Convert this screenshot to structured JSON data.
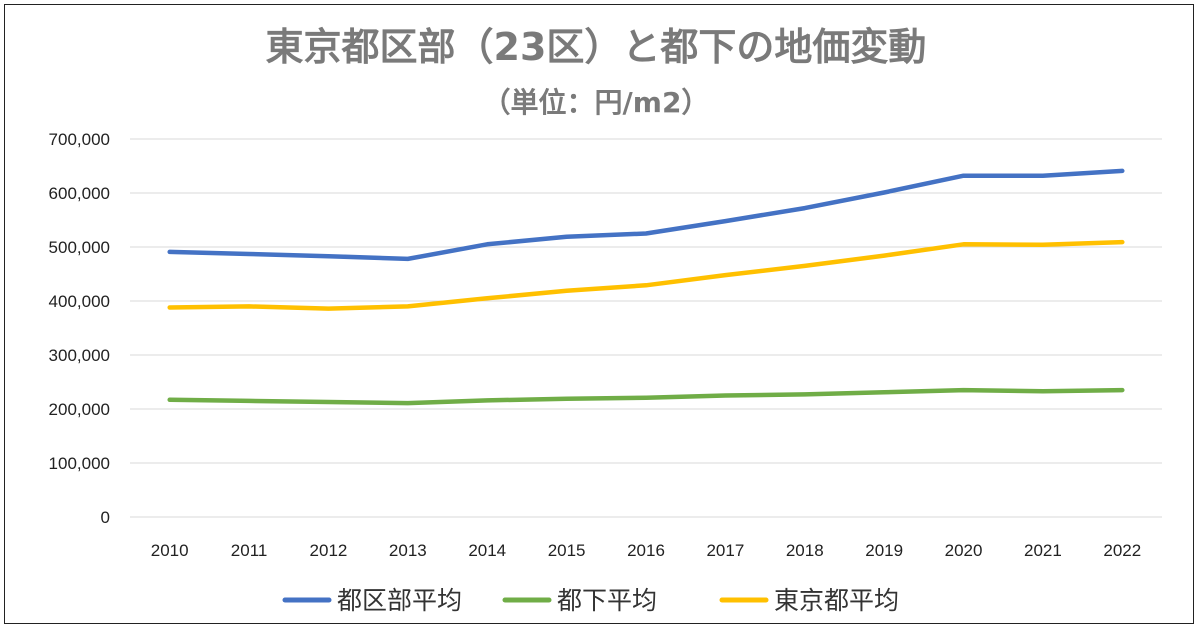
{
  "chart_data": {
    "type": "line",
    "title": "東京都区部（23区）と都下の地価変動",
    "subtitle": "（単位：円/m2）",
    "x": [
      "2010",
      "2011",
      "2012",
      "2013",
      "2014",
      "2015",
      "2016",
      "2017",
      "2018",
      "2019",
      "2020",
      "2021",
      "2022"
    ],
    "ylim": [
      0,
      700000
    ],
    "yticks": [
      {
        "value": 0,
        "label": "0"
      },
      {
        "value": 100000,
        "label": "100,000"
      },
      {
        "value": 200000,
        "label": "200,000"
      },
      {
        "value": 300000,
        "label": "300,000"
      },
      {
        "value": 400000,
        "label": "400,000"
      },
      {
        "value": 500000,
        "label": "500,000"
      },
      {
        "value": 600000,
        "label": "600,000"
      },
      {
        "value": 700000,
        "label": "700,000"
      }
    ],
    "grid": true,
    "legend_position": "bottom",
    "series": [
      {
        "name": "都区部平均",
        "color": "#4472c4",
        "values": [
          491000,
          487000,
          483000,
          478000,
          505000,
          519000,
          525000,
          548000,
          572000,
          601000,
          632000,
          632000,
          641000
        ]
      },
      {
        "name": "都下平均",
        "color": "#70ad47",
        "values": [
          217000,
          215000,
          213000,
          211000,
          216000,
          219000,
          221000,
          225000,
          227000,
          231000,
          235000,
          233000,
          235000
        ]
      },
      {
        "name": "東京都平均",
        "color": "#ffc000",
        "values": [
          388000,
          390000,
          386000,
          390000,
          405000,
          419000,
          429000,
          448000,
          465000,
          484000,
          505000,
          504000,
          509000
        ]
      }
    ]
  }
}
